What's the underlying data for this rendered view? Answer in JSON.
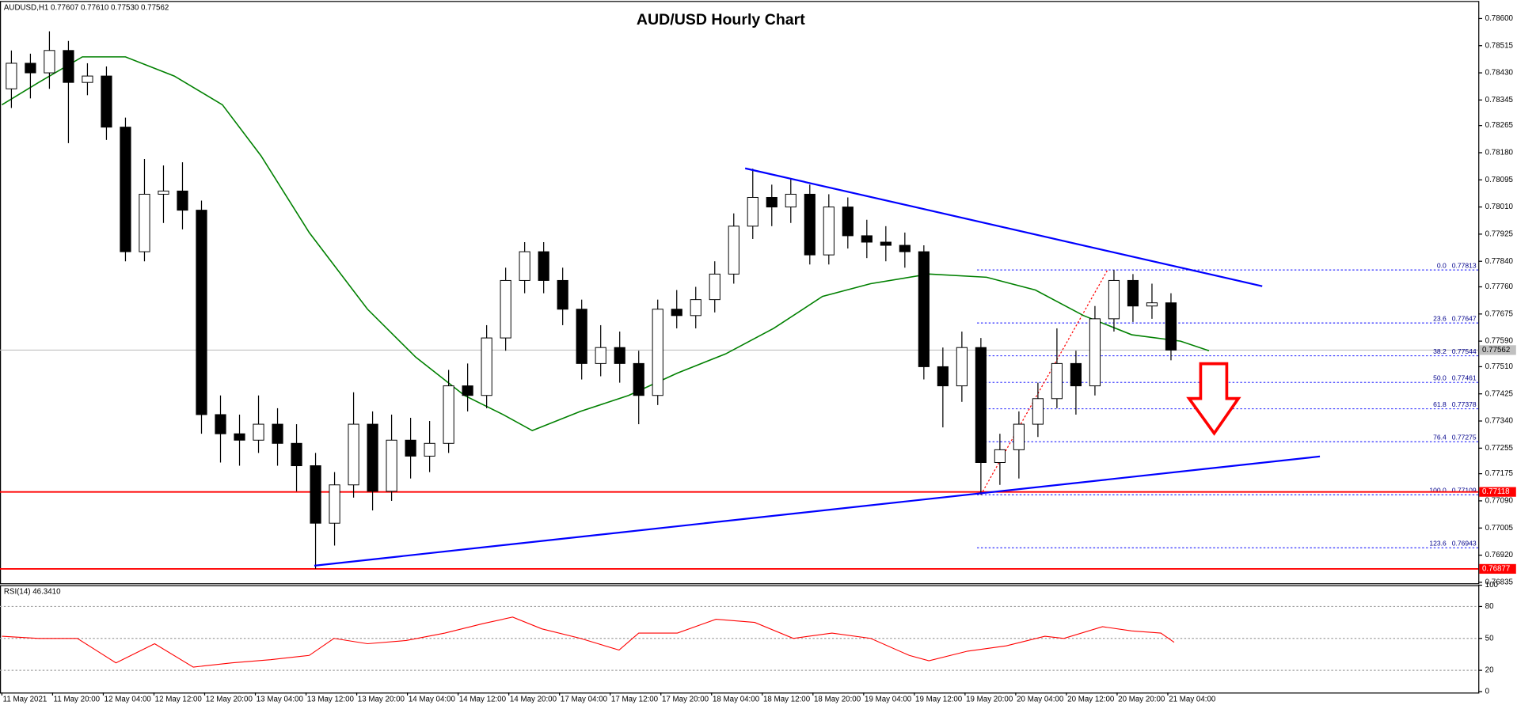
{
  "chart_data": {
    "type": "candlestick",
    "title": "AUD/USD Hourly Chart",
    "header": "AUDUSD,H1 0.77607 0.77610 0.77530 0.77562",
    "colors": {
      "up": "#ffffff",
      "down": "#000000"
    },
    "x": [
      0,
      3,
      6,
      9,
      12,
      15,
      18,
      21,
      24,
      27,
      30,
      33,
      36,
      39,
      42,
      45,
      48,
      51,
      54,
      57,
      60,
      63,
      66,
      69,
      72,
      75,
      78,
      81,
      84,
      87,
      90,
      93,
      96,
      99,
      102,
      105,
      108,
      111,
      114,
      117,
      120,
      123,
      126,
      129,
      132,
      135,
      138,
      141,
      144,
      147,
      150,
      153,
      156,
      159,
      162,
      165,
      168,
      171,
      174,
      177,
      180,
      183
    ],
    "open": [
      0.7838,
      0.7846,
      0.7843,
      0.785,
      0.784,
      0.7842,
      0.7826,
      0.7787,
      0.7805,
      0.7806,
      0.78,
      0.7736,
      0.773,
      0.7728,
      0.7733,
      0.7727,
      0.772,
      0.7702,
      0.7714,
      0.7733,
      0.7712,
      0.7728,
      0.7723,
      0.7727,
      0.7745,
      0.7742,
      0.776,
      0.7778,
      0.7787,
      0.7778,
      0.7769,
      0.7752,
      0.7757,
      0.7752,
      0.7742,
      0.7769,
      0.7767,
      0.7772,
      0.778,
      0.7795,
      0.7804,
      0.7801,
      0.7805,
      0.7786,
      0.7801,
      0.7792,
      0.779,
      0.7789,
      0.7787,
      0.7751,
      0.7745,
      0.7757,
      0.7721,
      0.7725,
      0.7733,
      0.7741,
      0.7752,
      0.7745,
      0.7766,
      0.7778,
      0.777,
      0.7771
    ],
    "high": [
      0.785,
      0.7849,
      0.7856,
      0.7853,
      0.7846,
      0.7845,
      0.7829,
      0.7816,
      0.7814,
      0.7815,
      0.7803,
      0.7742,
      0.7736,
      0.7742,
      0.7738,
      0.7733,
      0.7724,
      0.7718,
      0.7743,
      0.7737,
      0.7736,
      0.7735,
      0.7734,
      0.775,
      0.7752,
      0.7764,
      0.7782,
      0.779,
      0.779,
      0.7782,
      0.7772,
      0.7764,
      0.7762,
      0.7756,
      0.7772,
      0.7775,
      0.7776,
      0.7784,
      0.7799,
      0.7813,
      0.7808,
      0.781,
      0.7808,
      0.7805,
      0.7804,
      0.7797,
      0.7795,
      0.7793,
      0.7789,
      0.7757,
      0.7762,
      0.776,
      0.773,
      0.7737,
      0.7746,
      0.7763,
      0.7756,
      0.777,
      0.77813,
      0.778,
      0.7777,
      0.7774
    ],
    "low": [
      0.7832,
      0.7835,
      0.7838,
      0.7821,
      0.7836,
      0.7822,
      0.7784,
      0.7784,
      0.7796,
      0.7794,
      0.773,
      0.7721,
      0.772,
      0.7724,
      0.772,
      0.7712,
      0.76877,
      0.7695,
      0.771,
      0.7706,
      0.7709,
      0.7716,
      0.7718,
      0.7724,
      0.7737,
      0.7738,
      0.7756,
      0.7774,
      0.7774,
      0.7764,
      0.7747,
      0.7748,
      0.7746,
      0.7733,
      0.7739,
      0.7763,
      0.7763,
      0.7768,
      0.7777,
      0.7791,
      0.7795,
      0.7796,
      0.7783,
      0.7783,
      0.7788,
      0.7785,
      0.7784,
      0.7782,
      0.7747,
      0.7732,
      0.774,
      0.77109,
      0.7714,
      0.7716,
      0.7729,
      0.7738,
      0.7736,
      0.7742,
      0.7762,
      0.7765,
      0.7766,
      0.7753
    ],
    "close": [
      0.7846,
      0.7843,
      0.785,
      0.784,
      0.7842,
      0.7826,
      0.7787,
      0.7805,
      0.7806,
      0.78,
      0.7736,
      0.773,
      0.7728,
      0.7733,
      0.7727,
      0.772,
      0.7702,
      0.7714,
      0.7733,
      0.7712,
      0.7728,
      0.7723,
      0.7727,
      0.7745,
      0.7742,
      0.776,
      0.7778,
      0.7787,
      0.7778,
      0.7769,
      0.7752,
      0.7757,
      0.7752,
      0.7742,
      0.7769,
      0.7767,
      0.7772,
      0.778,
      0.7795,
      0.7804,
      0.7801,
      0.7805,
      0.7786,
      0.7801,
      0.7792,
      0.779,
      0.7789,
      0.7787,
      0.7751,
      0.7745,
      0.7757,
      0.7721,
      0.7725,
      0.7733,
      0.7741,
      0.7752,
      0.7745,
      0.7766,
      0.7778,
      0.777,
      0.7771,
      0.77562
    ],
    "xlim": [
      -0.3,
      233
    ],
    "xticks": [
      {
        "value": 0,
        "label": "11 May 2021"
      },
      {
        "value": 8,
        "label": "11 May 20:00"
      },
      {
        "value": 16,
        "label": "12 May 04:00"
      },
      {
        "value": 24,
        "label": "12 May 12:00"
      },
      {
        "value": 32,
        "label": "12 May 20:00"
      },
      {
        "value": 40,
        "label": "13 May 04:00"
      },
      {
        "value": 48,
        "label": "13 May 12:00"
      },
      {
        "value": 56,
        "label": "13 May 20:00"
      },
      {
        "value": 64,
        "label": "14 May 04:00"
      },
      {
        "value": 72,
        "label": "14 May 12:00"
      },
      {
        "value": 80,
        "label": "14 May 20:00"
      },
      {
        "value": 88,
        "label": "17 May 04:00"
      },
      {
        "value": 96,
        "label": "17 May 12:00"
      },
      {
        "value": 104,
        "label": "17 May 20:00"
      },
      {
        "value": 112,
        "label": "18 May 04:00"
      },
      {
        "value": 120,
        "label": "18 May 12:00"
      },
      {
        "value": 128,
        "label": "18 May 20:00"
      },
      {
        "value": 136,
        "label": "19 May 04:00"
      },
      {
        "value": 144,
        "label": "19 May 12:00"
      },
      {
        "value": 152,
        "label": "19 May 20:00"
      },
      {
        "value": 160,
        "label": "20 May 04:00"
      },
      {
        "value": 168,
        "label": "20 May 12:00"
      },
      {
        "value": 176,
        "label": "20 May 20:00"
      },
      {
        "value": 184,
        "label": "21 May 04:00"
      }
    ],
    "ylim": [
      0.76832,
      0.78652
    ],
    "yticks": [
      {
        "value": 0.786,
        "label": "0.78600"
      },
      0.78515,
      {
        "value": 0.7843,
        "label": "0.78430"
      },
      0.78345,
      0.78265,
      {
        "value": 0.7818,
        "label": "0.78180"
      },
      0.78095,
      {
        "value": 0.7801,
        "label": "0.78010"
      },
      0.77925,
      {
        "value": 0.7784,
        "label": "0.77840"
      },
      {
        "value": 0.7776,
        "label": "0.77760"
      },
      0.77675,
      {
        "value": 0.7759,
        "label": "0.77590"
      },
      {
        "value": 0.7751,
        "label": "0.77510"
      },
      0.77425,
      {
        "value": 0.7734,
        "label": "0.77340"
      },
      0.77255,
      0.77175,
      {
        "value": 0.7709,
        "label": "0.77090"
      },
      0.77005,
      {
        "value": 0.7692,
        "label": "0.76920"
      },
      0.76835
    ],
    "ma": {
      "color": "#008000",
      "x": [
        0,
        5.8,
        12.7,
        19.5,
        27.2,
        34.8,
        40.9,
        48.5,
        57.7,
        65.3,
        73,
        79.1,
        83.7,
        91.3,
        98.9,
        106.6,
        114.2,
        121.8,
        129.5,
        137.1,
        146.3,
        155.4,
        163.1,
        170.7,
        178.3,
        186,
        190.5
      ],
      "values": [
        0.7833,
        0.784,
        0.7848,
        0.7848,
        0.7842,
        0.7833,
        0.7817,
        0.7793,
        0.7769,
        0.7754,
        0.7742,
        0.7736,
        0.7731,
        0.7737,
        0.7742,
        0.7749,
        0.7755,
        0.7763,
        0.7773,
        0.7777,
        0.778,
        0.7779,
        0.7775,
        0.7767,
        0.7761,
        0.7759,
        0.7756
      ]
    },
    "trendlines": [
      {
        "color": "#0000ff",
        "x": [
          117.3,
          198.9
        ],
        "values": [
          0.78131,
          0.77762
        ]
      },
      {
        "color": "#0000ff",
        "x": [
          49.3,
          208
        ],
        "values": [
          0.76887,
          0.77229
        ]
      }
    ],
    "levels": [
      {
        "color": "#ff0000",
        "value": 0.77118
      },
      {
        "color": "#ff0000",
        "value": 0.76877
      }
    ],
    "current": {
      "color": "#c0c0c0",
      "value": 0.77562
    },
    "fibonacci": {
      "color": "#0000ff",
      "anchor_color": "#ff0000",
      "x": [
        153.9,
        233
      ],
      "anchor_x": [
        154.5,
        174.5
      ],
      "levels": [
        {
          "ratio": "0.0",
          "price": 0.77813
        },
        {
          "ratio": "23.6",
          "price": 0.77647
        },
        {
          "ratio": "38.2",
          "price": 0.77544
        },
        {
          "ratio": "50.0",
          "price": 0.77461
        },
        {
          "ratio": "61.8",
          "price": 0.77378
        },
        {
          "ratio": "76.4",
          "price": 0.77275
        },
        {
          "ratio": "100.0",
          "price": 0.77109
        },
        {
          "ratio": "123.6",
          "price": 0.76943
        }
      ]
    },
    "rsi": {
      "label": "RSI(14) 46.3410",
      "color": "#ff0000",
      "grid": true,
      "x": [
        0,
        5.8,
        11.9,
        18,
        24.1,
        30.2,
        36.3,
        42.4,
        48.5,
        52.4,
        57.7,
        63.8,
        69.9,
        76,
        80.6,
        85.2,
        91.3,
        97.4,
        100.5,
        106.6,
        112.7,
        118.8,
        124.9,
        131,
        137.1,
        143.2,
        146.3,
        152.4,
        158.5,
        164.6,
        167.6,
        173.7,
        178.3,
        182.9,
        185
      ],
      "values": [
        52,
        50,
        50,
        27,
        45,
        23,
        27,
        30,
        34,
        50,
        45,
        48,
        55,
        64,
        70,
        59,
        50,
        39,
        55,
        55,
        68,
        65,
        50,
        55,
        50,
        34,
        29,
        38,
        43,
        52,
        50,
        61,
        57,
        55,
        46.341
      ],
      "ylim": [
        0,
        100
      ],
      "yticks": [
        100,
        80,
        50,
        20,
        0
      ]
    }
  }
}
